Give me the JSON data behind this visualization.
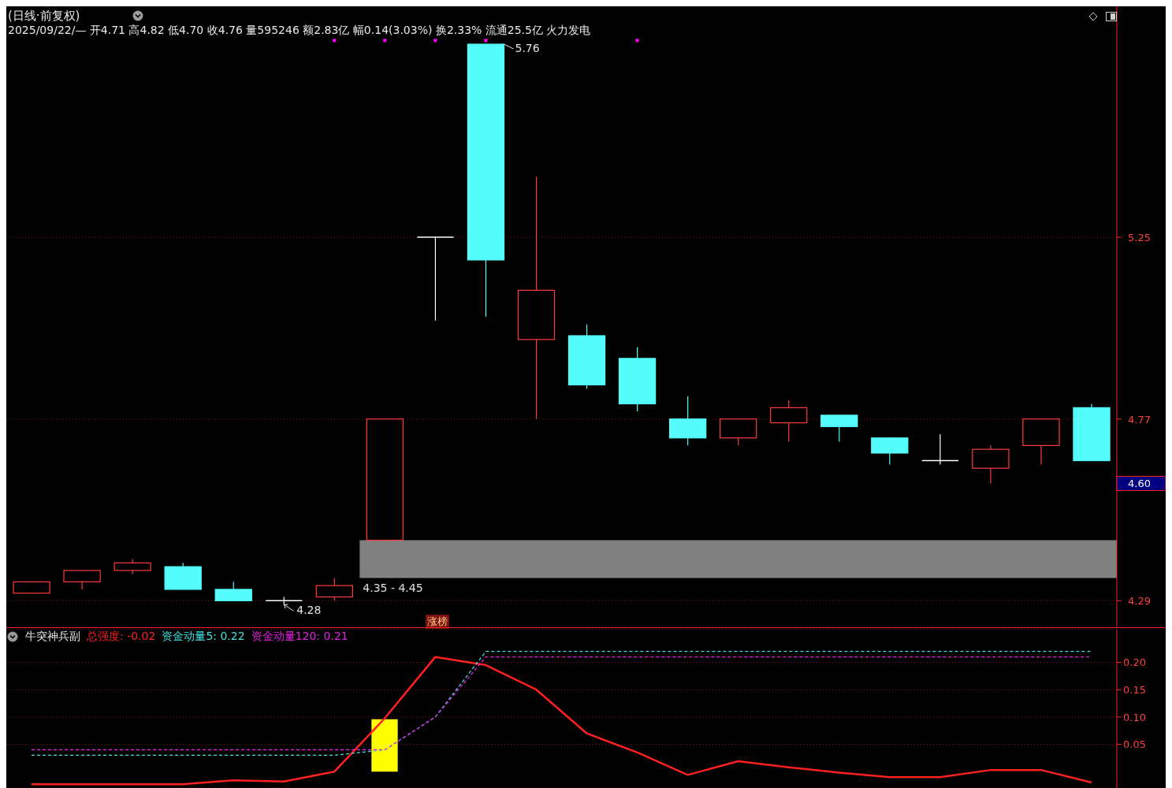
{
  "chart_data": [
    {
      "type": "candlestick",
      "title": "(日线·前复权)",
      "subtitle": "2025/09/22/— 开4.71 高4.82 低4.70 收4.76 量595246 额2.83亿 幅0.14(3.03%) 换2.33% 流通25.5亿 火力发电",
      "categories": [
        null,
        null,
        null,
        null,
        null,
        null,
        null,
        null,
        null,
        null,
        null,
        null,
        null,
        null,
        null,
        null,
        null,
        null,
        null,
        null,
        null,
        null
      ],
      "ohlc": [
        [
          4.31,
          4.34,
          4.31,
          4.34
        ],
        [
          4.34,
          4.37,
          4.32,
          4.37
        ],
        [
          4.37,
          4.4,
          4.36,
          4.39
        ],
        [
          4.38,
          4.39,
          4.32,
          4.32
        ],
        [
          4.32,
          4.34,
          4.29,
          4.29
        ],
        [
          4.29,
          4.3,
          4.28,
          4.29
        ],
        [
          4.3,
          4.35,
          4.29,
          4.33
        ],
        [
          4.45,
          4.77,
          4.45,
          4.77
        ],
        [
          5.25,
          5.25,
          5.03,
          5.25
        ],
        [
          5.76,
          5.76,
          5.04,
          5.19
        ],
        [
          4.98,
          5.41,
          4.77,
          5.11
        ],
        [
          4.99,
          5.02,
          4.85,
          4.86
        ],
        [
          4.93,
          4.96,
          4.79,
          4.81
        ],
        [
          4.77,
          4.83,
          4.7,
          4.72
        ],
        [
          4.72,
          4.77,
          4.7,
          4.77
        ],
        [
          4.76,
          4.82,
          4.71,
          4.8
        ],
        [
          4.78,
          4.78,
          4.71,
          4.75
        ],
        [
          4.72,
          4.72,
          4.65,
          4.68
        ],
        [
          4.66,
          4.73,
          4.65,
          4.66
        ],
        [
          4.64,
          4.7,
          4.6,
          4.69
        ],
        [
          4.7,
          4.77,
          4.65,
          4.77
        ],
        [
          4.8,
          4.81,
          4.66,
          4.66
        ]
      ],
      "colors": [
        "#ff3c3c",
        "#ff3c3c",
        "#ff3c3c",
        "#54fcfc",
        "#54fcfc",
        "#ffffff",
        "#ff3c3c",
        "#ff3c3c",
        "#ffffff",
        "#54fcfc",
        "#ff3c3c",
        "#54fcfc",
        "#54fcfc",
        "#54fcfc",
        "#ff3c3c",
        "#ff3c3c",
        "#54fcfc",
        "#54fcfc",
        "#ffffff",
        "#ff3c3c",
        "#ff3c3c",
        "#54fcfc"
      ],
      "series": [
        {
          "type": "scatter",
          "color": "#ff00ff",
          "marker": "square",
          "values": [
            null,
            null,
            null,
            null,
            null,
            null,
            5.77,
            5.77,
            5.77,
            5.77,
            null,
            null,
            5.77,
            null,
            null,
            null,
            null,
            null,
            null,
            null,
            null,
            null
          ]
        }
      ],
      "ylim": [
        4.22,
        5.86
      ],
      "yticks": [
        4.29,
        {
          "value": 4.6,
          "label": "4.60"
        },
        4.77,
        5.25
      ],
      "grid": "y",
      "bands": [
        {
          "axis": "y",
          "from": 4.35,
          "to": 4.45,
          "label": "4.35 - 4.45",
          "color": "#808080"
        }
      ],
      "annotations": [
        "4.28",
        "5.76",
        "涨榜"
      ]
    },
    {
      "type": "line",
      "title": "牛突神兵副",
      "legend": "top left",
      "categories": [
        null,
        null,
        null,
        null,
        null,
        null,
        null,
        null,
        null,
        null,
        null,
        null,
        null,
        null,
        null,
        null,
        null,
        null,
        null,
        null,
        null,
        null
      ],
      "series": [
        {
          "name": "总强度: -0.02",
          "type": "line",
          "color": "#ff2020",
          "line_style": "solid",
          "values": [
            -0.023,
            -0.023,
            -0.023,
            -0.023,
            -0.016,
            -0.018,
            0.0,
            0.098,
            0.21,
            0.195,
            0.15,
            0.07,
            0.035,
            -0.006,
            0.019,
            0.008,
            -0.002,
            -0.01,
            -0.01,
            0.003,
            0.003,
            -0.02
          ]
        },
        {
          "name": "资金动量5: 0.22",
          "type": "line",
          "color": "#40e0e0",
          "line_style": "dashed",
          "values": [
            0.03,
            0.03,
            0.03,
            0.03,
            0.03,
            0.03,
            0.03,
            0.04,
            0.1,
            0.22,
            0.22,
            0.22,
            0.22,
            0.22,
            0.22,
            0.22,
            0.22,
            0.22,
            0.22,
            0.22,
            0.22,
            0.22
          ]
        },
        {
          "name": "资金动量120: 0.21",
          "type": "line",
          "color": "#e020e0",
          "line_style": "dashed",
          "values": [
            0.04,
            0.04,
            0.04,
            0.04,
            0.04,
            0.04,
            0.04,
            0.04,
            0.1,
            0.21,
            0.21,
            0.21,
            0.21,
            0.21,
            0.21,
            0.21,
            0.21,
            0.21,
            0.21,
            0.21,
            0.21,
            0.21
          ]
        },
        {
          "type": "bar",
          "color": "#ffff00",
          "base": [
            null,
            null,
            null,
            null,
            null,
            null,
            null,
            0.0,
            null,
            null,
            null,
            null,
            null,
            null,
            null,
            null,
            null,
            null,
            null,
            null,
            null,
            null
          ],
          "values": [
            null,
            null,
            null,
            null,
            null,
            null,
            null,
            0.096,
            null,
            null,
            null,
            null,
            null,
            null,
            null,
            null,
            null,
            null,
            null,
            null,
            null,
            null
          ]
        }
      ],
      "ylim": [
        -0.03,
        0.26
      ],
      "yticks": [
        0.05,
        {
          "value": 0.1,
          "label": "0.10"
        },
        {
          "value": 0.15,
          "label": "0.15"
        },
        {
          "value": 0.2,
          "label": "0.20"
        }
      ],
      "grid": "y"
    }
  ]
}
